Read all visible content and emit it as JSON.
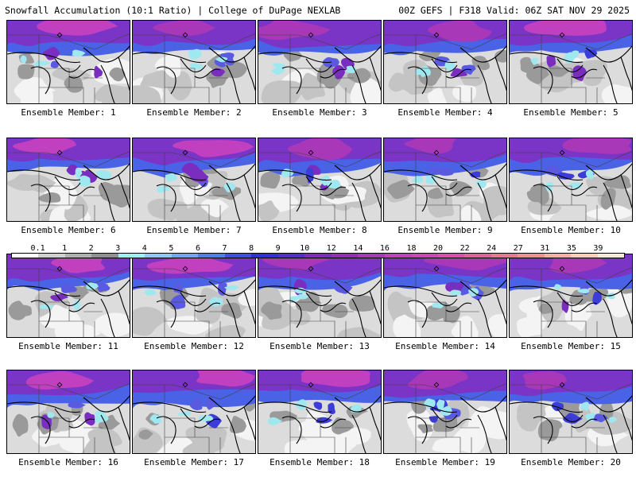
{
  "header": {
    "left": "Snowfall Accumulation (10:1 Ratio) | College of DuPage NEXLAB",
    "right": "00Z GEFS | F318 Valid: 06Z SAT NOV 29 2025"
  },
  "legend": {
    "labels": [
      "0.1",
      "1",
      "2",
      "3",
      "4",
      "5",
      "6",
      "7",
      "8",
      "9",
      "10",
      "12",
      "14",
      "16",
      "18",
      "20",
      "22",
      "24",
      "27",
      "31",
      "35",
      "39"
    ],
    "colors": [
      "#ffffff",
      "#d0d0d0",
      "#b0b0b0",
      "#909090",
      "#a0f0f0",
      "#8fc8f5",
      "#6fa8f0",
      "#4f80e8",
      "#3f50e0",
      "#3030d8",
      "#5030c8",
      "#7a2ec0",
      "#952fb8",
      "#a838b8",
      "#c040c0",
      "#cc48b0",
      "#d850a8",
      "#e06098",
      "#e87890",
      "#f09090",
      "#f5b0a0",
      "#fbd0b0",
      "#fce8d8"
    ]
  },
  "members": [
    {
      "caption": "Ensemble Member: 1"
    },
    {
      "caption": "Ensemble Member: 2"
    },
    {
      "caption": "Ensemble Member: 3"
    },
    {
      "caption": "Ensemble Member: 4"
    },
    {
      "caption": "Ensemble Member: 5"
    },
    {
      "caption": "Ensemble Member: 6"
    },
    {
      "caption": "Ensemble Member: 7"
    },
    {
      "caption": "Ensemble Member: 8"
    },
    {
      "caption": "Ensemble Member: 9"
    },
    {
      "caption": "Ensemble Member: 10"
    },
    {
      "caption": "Ensemble Member: 11"
    },
    {
      "caption": "Ensemble Member: 12"
    },
    {
      "caption": "Ensemble Member: 13"
    },
    {
      "caption": "Ensemble Member: 14"
    },
    {
      "caption": "Ensemble Member: 15"
    },
    {
      "caption": "Ensemble Member: 16"
    },
    {
      "caption": "Ensemble Member: 17"
    },
    {
      "caption": "Ensemble Member: 18"
    },
    {
      "caption": "Ensemble Member: 19"
    },
    {
      "caption": "Ensemble Member: 20"
    }
  ]
}
